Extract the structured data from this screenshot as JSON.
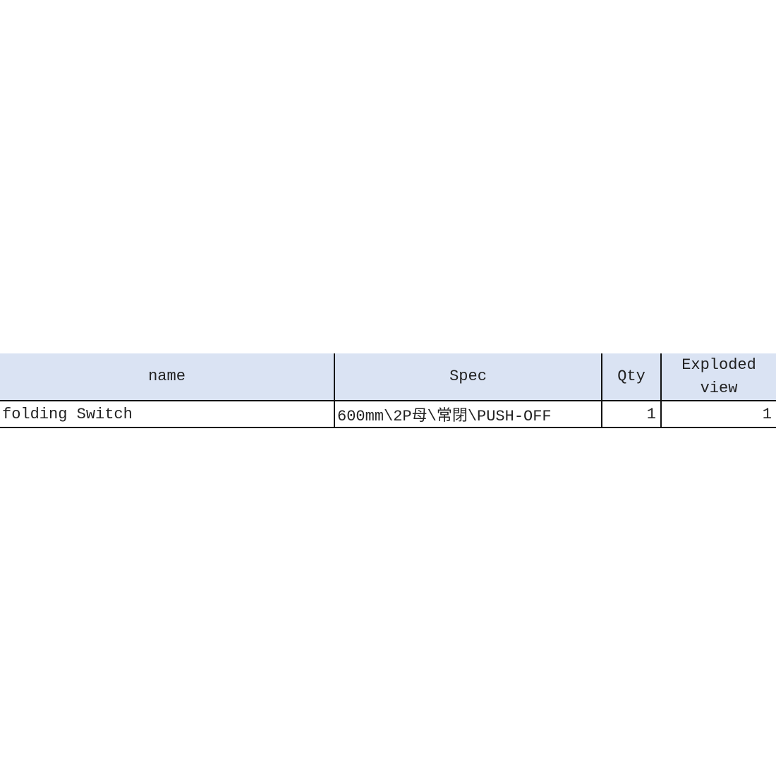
{
  "table": {
    "headers": [
      "name",
      "Spec",
      "Qty",
      "Exploded view"
    ],
    "rows": [
      {
        "name": "folding Switch",
        "spec": "600mm\\2P母\\常閉\\PUSH-OFF",
        "qty": "1",
        "exploded_view": "1"
      }
    ]
  },
  "colors": {
    "header_bg": "#dae3f3",
    "border": "#111111"
  }
}
